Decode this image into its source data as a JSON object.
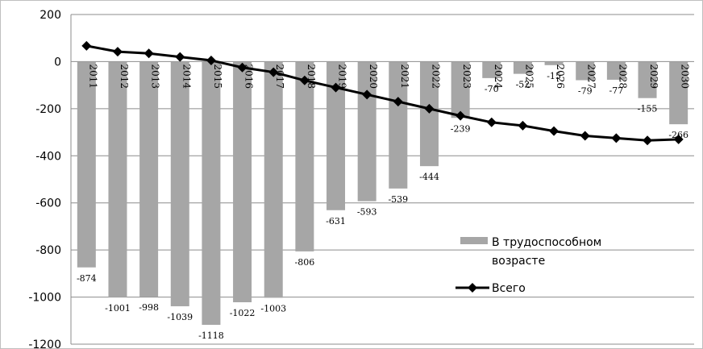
{
  "chart_data": {
    "type": "bar",
    "categories": [
      "2011",
      "2012",
      "2013",
      "2014",
      "2015",
      "2016",
      "2017",
      "2018",
      "2019",
      "2020",
      "2021",
      "2022",
      "2023",
      "2024",
      "2025",
      "2026",
      "2027",
      "2028",
      "2029",
      "2030"
    ],
    "series": [
      {
        "name": "В трудоспособном возрасте",
        "type": "bar",
        "color": "#a6a6a6",
        "values": [
          -874,
          -1001,
          -998,
          -1039,
          -1118,
          -1022,
          -1003,
          -806,
          -631,
          -593,
          -539,
          -444,
          -239,
          -70,
          -52,
          -15,
          -79,
          -77,
          -155,
          -266
        ],
        "data_labels": [
          "-874",
          "-1001",
          "-998",
          "-1039",
          "-1118",
          "-1022",
          "-1003",
          "-806",
          "-631",
          "-593",
          "-539",
          "-444",
          "-239",
          "-70",
          "-52",
          "-15",
          "-79",
          "-77",
          "-155",
          "-266"
        ]
      },
      {
        "name": "Всего",
        "type": "line",
        "marker": "diamond",
        "color": "#000000",
        "values": [
          67,
          42,
          35,
          20,
          5,
          -25,
          -45,
          -80,
          -110,
          -140,
          -170,
          -200,
          -230,
          -258,
          -272,
          -295,
          -315,
          -325,
          -335,
          -330
        ]
      }
    ],
    "ylim": [
      -1200,
      200
    ],
    "yticks": [
      "200",
      "0",
      "-200",
      "-400",
      "-600",
      "-800",
      "-1000",
      "-1200"
    ],
    "ytick_values": [
      200,
      0,
      -200,
      -400,
      -600,
      -800,
      -1000,
      -1200
    ],
    "grid": true,
    "legend": {
      "position": "right",
      "entries": [
        "В трудоспособном",
        "возрасте",
        "Всего"
      ]
    },
    "title": "",
    "xlabel": "",
    "ylabel": ""
  }
}
